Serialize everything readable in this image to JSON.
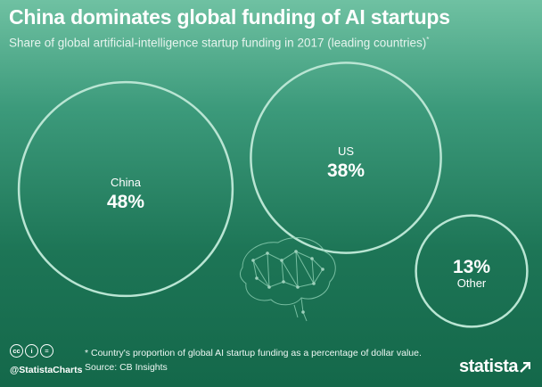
{
  "header": {
    "title": "China dominates global funding of AI startups",
    "subtitle": "Share of global artificial-intelligence startup funding in 2017 (leading countries)",
    "subtitle_mark": "*"
  },
  "chart_data": {
    "type": "bubble",
    "unit": "%",
    "series": [
      {
        "label": "China",
        "value": 48
      },
      {
        "label": "US",
        "value": 38
      },
      {
        "label": "Other",
        "value": 13
      }
    ]
  },
  "footer": {
    "note": "* Country's proportion of global AI startup funding as a percentage of dollar value.",
    "source": "Source: CB Insights",
    "handle": "@StatistaCharts",
    "brand": "statista",
    "cc_icons": [
      "cc-icon",
      "by-icon",
      "nd-icon"
    ]
  },
  "colors": {
    "background_top": "#6fc1a2",
    "background_bottom": "#14684a",
    "circle_stroke": "#b9e5d3",
    "text": "#ffffff"
  }
}
